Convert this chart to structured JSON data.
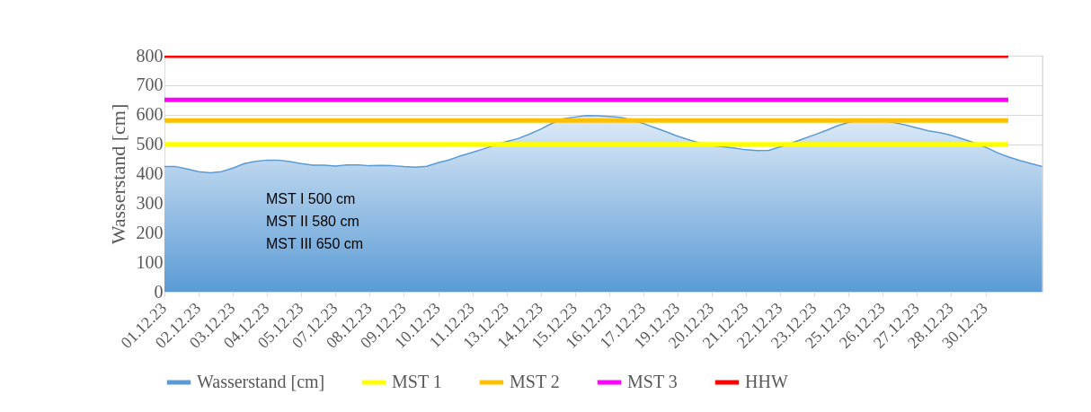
{
  "chart_data": {
    "type": "area",
    "ylabel": "Wasserstand [cm]",
    "categories": [
      "01.12.23",
      null,
      null,
      "02.12.23",
      null,
      null,
      "03.12.23",
      null,
      null,
      "04.12.23",
      null,
      null,
      "05.12.23",
      null,
      null,
      "07.12.23",
      null,
      null,
      "08.12.23",
      null,
      null,
      "09.12.23",
      null,
      null,
      "10.12.23",
      null,
      null,
      "11.12.23",
      null,
      null,
      "13.12.23",
      null,
      null,
      "14.12.23",
      null,
      null,
      "15.12.23",
      null,
      null,
      "16.12.23",
      null,
      null,
      "17.12.23",
      null,
      null,
      "19.12.23",
      null,
      null,
      "20.12.23",
      null,
      null,
      "21.12.23",
      null,
      null,
      "22.12.23",
      null,
      null,
      "23.12.23",
      null,
      null,
      "25.12.23",
      null,
      null,
      "26.12.23",
      null,
      null,
      "27.12.23",
      null,
      null,
      "28.12.23",
      null,
      null,
      "30.12.23",
      null,
      null,
      null,
      null,
      null
    ],
    "series": [
      {
        "name": "Wasserstand [cm]",
        "type": "area",
        "color": "#5b9bd5",
        "values": [
          424,
          424,
          416,
          407,
          403,
          407,
          419,
          434,
          442,
          446,
          446,
          441,
          434,
          429,
          429,
          426,
          430,
          430,
          427,
          428,
          427,
          424,
          422,
          425,
          437,
          447,
          461,
          472,
          484,
          498,
          509,
          519,
          534,
          551,
          571,
          586,
          592,
          597,
          596,
          594,
          591,
          582,
          570,
          556,
          542,
          527,
          515,
          503,
          496,
          491,
          487,
          481,
          478,
          479,
          491,
          504,
          518,
          532,
          546,
          562,
          574,
          582,
          582,
          579,
          573,
          565,
          555,
          545,
          539,
          530,
          518,
          505,
          490,
          472,
          457,
          445,
          434,
          424
        ]
      },
      {
        "name": "MST 1",
        "type": "line",
        "color": "#ffff00",
        "values": [
          500,
          500,
          500,
          500,
          500,
          500,
          500,
          500,
          500,
          500,
          500,
          500,
          500,
          500,
          500,
          500,
          500,
          500,
          500,
          500,
          500,
          500,
          500,
          500,
          500,
          500,
          500,
          500,
          500,
          500,
          500,
          500,
          500,
          500,
          500,
          500,
          500,
          500,
          500,
          500,
          500,
          500,
          500,
          500,
          500,
          500,
          500,
          500,
          500,
          500,
          500,
          500,
          500,
          500,
          500,
          500,
          500,
          500,
          500,
          500,
          500,
          500,
          500,
          500,
          500,
          500,
          500,
          500,
          500,
          500,
          500,
          500,
          500,
          500,
          500,
          null,
          null,
          null
        ]
      },
      {
        "name": "MST 2",
        "type": "line",
        "color": "#ffc000",
        "values": [
          580,
          580,
          580,
          580,
          580,
          580,
          580,
          580,
          580,
          580,
          580,
          580,
          580,
          580,
          580,
          580,
          580,
          580,
          580,
          580,
          580,
          580,
          580,
          580,
          580,
          580,
          580,
          580,
          580,
          580,
          580,
          580,
          580,
          580,
          580,
          580,
          580,
          580,
          580,
          580,
          580,
          580,
          580,
          580,
          580,
          580,
          580,
          580,
          580,
          580,
          580,
          580,
          580,
          580,
          580,
          580,
          580,
          580,
          580,
          580,
          580,
          580,
          580,
          580,
          580,
          580,
          580,
          580,
          580,
          580,
          580,
          580,
          580,
          580,
          580,
          null,
          null,
          null
        ]
      },
      {
        "name": "MST 3",
        "type": "line",
        "color": "#ff00ff",
        "values": [
          650,
          650,
          650,
          650,
          650,
          650,
          650,
          650,
          650,
          650,
          650,
          650,
          650,
          650,
          650,
          650,
          650,
          650,
          650,
          650,
          650,
          650,
          650,
          650,
          650,
          650,
          650,
          650,
          650,
          650,
          650,
          650,
          650,
          650,
          650,
          650,
          650,
          650,
          650,
          650,
          650,
          650,
          650,
          650,
          650,
          650,
          650,
          650,
          650,
          650,
          650,
          650,
          650,
          650,
          650,
          650,
          650,
          650,
          650,
          650,
          650,
          650,
          650,
          650,
          650,
          650,
          650,
          650,
          650,
          650,
          650,
          650,
          650,
          650,
          650,
          null,
          null,
          null
        ]
      },
      {
        "name": "HHW",
        "type": "line",
        "color": "#ff0000",
        "values": [
          800,
          800,
          800,
          800,
          800,
          800,
          800,
          800,
          800,
          800,
          800,
          800,
          800,
          800,
          800,
          800,
          800,
          800,
          800,
          800,
          800,
          800,
          800,
          800,
          800,
          800,
          800,
          800,
          800,
          800,
          800,
          800,
          800,
          800,
          800,
          800,
          800,
          800,
          800,
          800,
          800,
          800,
          800,
          800,
          800,
          800,
          800,
          800,
          800,
          800,
          800,
          800,
          800,
          800,
          800,
          800,
          800,
          800,
          800,
          800,
          800,
          800,
          800,
          800,
          800,
          800,
          800,
          800,
          800,
          800,
          800,
          800,
          800,
          800,
          800,
          null,
          null,
          null
        ]
      }
    ],
    "ylim": [
      0,
      800
    ],
    "yticks": [
      0,
      100,
      200,
      300,
      400,
      500,
      600,
      700,
      800
    ],
    "grid": "y",
    "legend": "bottom",
    "annotations": [
      "MST I   500 cm",
      "MST II  580 cm",
      "MST III 650 cm"
    ]
  }
}
